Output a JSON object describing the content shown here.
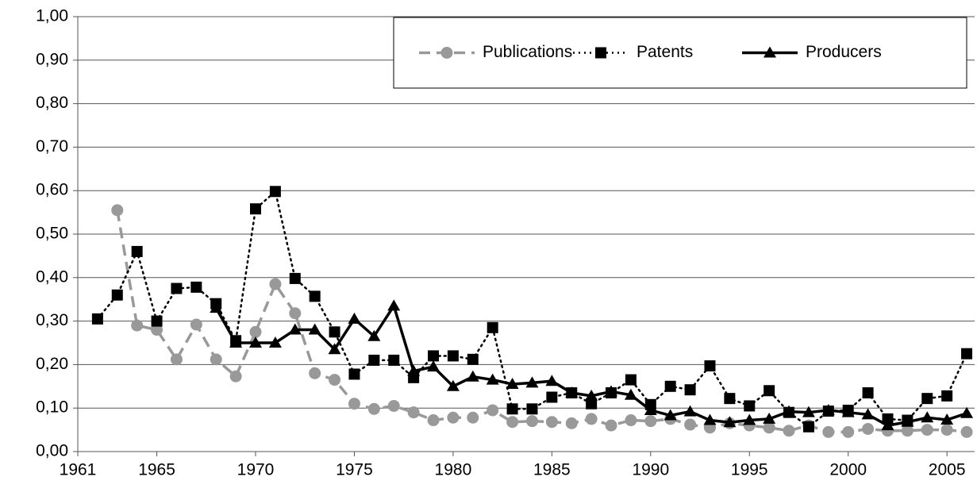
{
  "chart_data": {
    "type": "line",
    "series": [
      {
        "name": "Publications",
        "color": "#999999",
        "line_style": "dashed",
        "marker": "circle",
        "x": [
          1963,
          1964,
          1965,
          1966,
          1967,
          1968,
          1969,
          1970,
          1971,
          1972,
          1973,
          1974,
          1975,
          1976,
          1977,
          1978,
          1979,
          1980,
          1981,
          1982,
          1983,
          1984,
          1985,
          1986,
          1987,
          1988,
          1989,
          1990,
          1991,
          1992,
          1993,
          1994,
          1995,
          1996,
          1997,
          1998,
          1999,
          2000,
          2001,
          2002,
          2003,
          2004,
          2005,
          2006
        ],
        "values": [
          0.555,
          0.29,
          0.28,
          0.212,
          0.292,
          0.212,
          0.173,
          0.275,
          0.385,
          0.318,
          0.18,
          0.165,
          0.11,
          0.098,
          0.105,
          0.09,
          0.072,
          0.078,
          0.078,
          0.095,
          0.068,
          0.07,
          0.068,
          0.065,
          0.075,
          0.06,
          0.072,
          0.07,
          0.075,
          0.062,
          0.055,
          0.065,
          0.06,
          0.055,
          0.048,
          0.06,
          0.045,
          0.045,
          0.052,
          0.048,
          0.048,
          0.05,
          0.05,
          0.045
        ]
      },
      {
        "name": "Patents",
        "color": "#000000",
        "line_style": "dotted",
        "marker": "square",
        "x": [
          1962,
          1963,
          1964,
          1965,
          1966,
          1967,
          1968,
          1969,
          1970,
          1971,
          1972,
          1973,
          1974,
          1975,
          1976,
          1977,
          1978,
          1979,
          1980,
          1981,
          1982,
          1983,
          1984,
          1985,
          1986,
          1987,
          1988,
          1989,
          1990,
          1991,
          1992,
          1993,
          1994,
          1995,
          1996,
          1997,
          1998,
          1999,
          2000,
          2001,
          2002,
          2003,
          2004,
          2005,
          2006
        ],
        "values": [
          0.305,
          0.36,
          0.46,
          0.3,
          0.375,
          0.378,
          0.34,
          0.255,
          0.558,
          0.598,
          0.398,
          0.357,
          0.275,
          0.178,
          0.21,
          0.21,
          0.17,
          0.22,
          0.22,
          0.212,
          0.285,
          0.098,
          0.098,
          0.125,
          0.135,
          0.11,
          0.135,
          0.165,
          0.108,
          0.15,
          0.142,
          0.197,
          0.122,
          0.105,
          0.14,
          0.09,
          0.057,
          0.093,
          0.095,
          0.135,
          0.075,
          0.072,
          0.122,
          0.128,
          0.225
        ]
      },
      {
        "name": "Producers",
        "color": "#000000",
        "line_style": "solid",
        "marker": "triangle",
        "x": [
          1968,
          1969,
          1970,
          1971,
          1972,
          1973,
          1974,
          1975,
          1976,
          1977,
          1978,
          1979,
          1980,
          1981,
          1982,
          1983,
          1984,
          1985,
          1986,
          1987,
          1988,
          1989,
          1990,
          1991,
          1992,
          1993,
          1994,
          1995,
          1996,
          1997,
          1998,
          1999,
          2000,
          2001,
          2002,
          2003,
          2004,
          2005,
          2006
        ],
        "values": [
          0.33,
          0.25,
          0.25,
          0.25,
          0.28,
          0.28,
          0.235,
          0.305,
          0.265,
          0.335,
          0.185,
          0.195,
          0.15,
          0.172,
          0.165,
          0.155,
          0.158,
          0.162,
          0.135,
          0.128,
          0.138,
          0.13,
          0.095,
          0.083,
          0.092,
          0.072,
          0.067,
          0.072,
          0.075,
          0.092,
          0.09,
          0.095,
          0.09,
          0.085,
          0.06,
          0.068,
          0.078,
          0.073,
          0.088
        ]
      }
    ],
    "xlim": [
      1961,
      2006.4
    ],
    "xticks": [
      1961,
      1965,
      1970,
      1975,
      1980,
      1985,
      1990,
      1995,
      2000,
      2005
    ],
    "ylim": [
      0,
      1
    ],
    "yticks": [
      {
        "value": 0,
        "label": "0,00"
      },
      {
        "value": 0.1,
        "label": "0,10"
      },
      {
        "value": 0.2,
        "label": "0,20"
      },
      {
        "value": 0.3,
        "label": "0,30"
      },
      {
        "value": 0.4,
        "label": "0,40"
      },
      {
        "value": 0.5,
        "label": "0,50"
      },
      {
        "value": 0.6,
        "label": "0,60"
      },
      {
        "value": 0.7,
        "label": "0,70"
      },
      {
        "value": 0.8,
        "label": "0,80"
      },
      {
        "value": 0.9,
        "label": "0,90"
      },
      {
        "value": 1,
        "label": "1,00"
      }
    ],
    "grid": true,
    "legend": "top-right"
  }
}
